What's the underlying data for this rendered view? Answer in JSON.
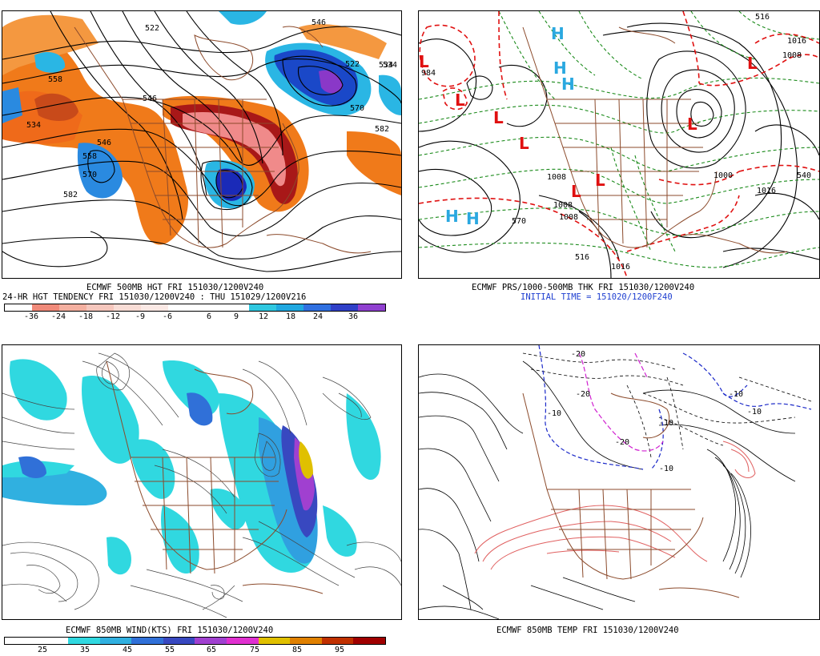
{
  "panels": [
    {
      "id": "hgt500",
      "caption1": "ECMWF 500MB HGT FRI 151030/1200V240",
      "caption2": "24-HR HGT TENDENCY FRI 151030/1200V240 : THU 151029/1200V216",
      "colorbar": {
        "colors": [
          "#ffffff",
          "#f08a7a",
          "#f4b0a0",
          "#f6c7bd",
          "#f9ddd6",
          "#fbe9e5",
          "#ffffff",
          "#ffffff",
          "#ffffff",
          "#30c8e0",
          "#20a8e0",
          "#3070e0",
          "#3040c8",
          "#9040d0"
        ],
        "ticks": [
          "-36",
          "-24",
          "-18",
          "-12",
          "-9",
          "-6",
          "6",
          "9",
          "12",
          "18",
          "24",
          "36"
        ]
      },
      "contour_labels": [
        "522",
        "534",
        "546",
        "558",
        "570",
        "582",
        "534",
        "522",
        "546",
        "570",
        "582",
        "534",
        "546",
        "558"
      ]
    },
    {
      "id": "prs",
      "caption1": "ECMWF PRS/1000-500MB THK FRI 151030/1200V240",
      "caption2": "INITIAL TIME = 151020/1200F240",
      "contour_labels": [
        "1016",
        "1016",
        "1008",
        "1008",
        "1000",
        "1016",
        "984",
        "1008",
        "570",
        "1008",
        "516",
        "540",
        "516"
      ],
      "highs": [
        "H",
        "H",
        "H",
        "H",
        "H"
      ],
      "lows": [
        "L",
        "L",
        "L",
        "L",
        "L",
        "L",
        "L",
        "L"
      ]
    },
    {
      "id": "wind850",
      "caption1": "ECMWF 850MB WIND(KTS) FRI 151030/1200V240",
      "colorbar": {
        "colors": [
          "#ffffff",
          "#ffffff",
          "#30d8e0",
          "#30b0e0",
          "#3070d8",
          "#3848c0",
          "#a040d0",
          "#e030d0",
          "#e0c000",
          "#e08000",
          "#c03000",
          "#a00000"
        ],
        "ticks": [
          "25",
          "35",
          "45",
          "55",
          "65",
          "75",
          "85",
          "95"
        ]
      }
    },
    {
      "id": "temp850",
      "caption1": "ECMWF 850MB TEMP FRI 151030/1200V240",
      "contour_labels": [
        "-20",
        "-20",
        "-10",
        "-10",
        "-10",
        "-10",
        "-20",
        "-10"
      ]
    }
  ],
  "colors": {
    "geography": "#8b4a2b",
    "warm_fill": "#f07a1a",
    "cold_fill": "#2ab6e4",
    "low_red": "#e01010",
    "high_cyan": "#2aa8e0",
    "thickness_red": "#e01010",
    "thickness_green": "#1a8a1a"
  }
}
